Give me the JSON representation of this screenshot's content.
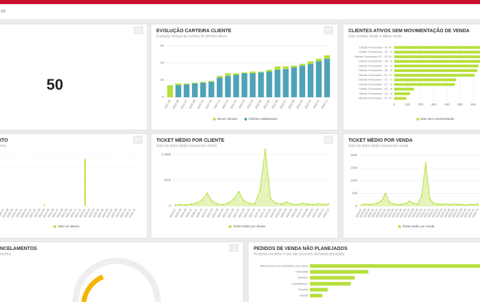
{
  "header": {
    "title_fragment": "as"
  },
  "kpi": {
    "value": 50
  },
  "chart_data": [
    {
      "type": "stacked_bar",
      "title": "EVOLUÇÃO CARTEIRA CLIENTE",
      "subtitle": "Evolução mensal da carteira de clientes ativos",
      "categories": [
        "2021-05",
        "2021-06",
        "2021-07",
        "2021-08",
        "2021-09",
        "2021-10",
        "2021-11",
        "2021-12",
        "2022-01",
        "2022-02",
        "2022-03",
        "2022-04",
        "2022-05",
        "2022-06",
        "2022-07",
        "2022-08",
        "2022-09",
        "2022-10",
        "2022-11",
        "2022-12"
      ],
      "series": [
        {
          "name": "Novos clientes",
          "color": "#b5e03a",
          "values": [
            14,
            2,
            1,
            1,
            1,
            1,
            2,
            3,
            2,
            1,
            2,
            1,
            2,
            4,
            3,
            2,
            2,
            3,
            3,
            4
          ]
        },
        {
          "name": "Clientes cadastrados",
          "color": "#4fa3b8",
          "values": [
            0,
            14,
            15,
            16,
            17,
            18,
            23,
            25,
            26,
            28,
            28,
            29,
            30,
            32,
            33,
            35,
            37,
            39,
            42,
            45
          ]
        }
      ],
      "ylim": [
        0,
        64
      ],
      "yticks": [
        0,
        20,
        40,
        60
      ],
      "grid": true
    },
    {
      "type": "hbar",
      "title": "CLIENTES ATIVOS SEM MOVIMENTAÇÃO DE VENDA",
      "subtitle": "Dias corridos desde a última venda",
      "categories": [
        "Cliente Fornecedor - ID \"A\"",
        "Cliente Fornecedor - 1P - C",
        "Cliente Fornecedor PF - 1P \"A\"",
        "Cliente Fornecedor - 1P - E",
        "Cliente Fornecedor - 1C - C",
        "Cliente Fornecedor - 3P - B",
        "Cliente Fornecedor - 3C \"A\"",
        "Cliente Fornecedor - 1C - C",
        "Cliente Fornecedor - 1C - D",
        "Cliente Fornecedor - 3C - B",
        "Cliente Fornecedor - 1C - A",
        "Cliente Fornecedor - 1C \"A\""
      ],
      "series": [
        {
          "name": "Dias sem movimentação",
          "color": "#b5e03a",
          "values": [
            680,
            670,
            660,
            650,
            640,
            630,
            610,
            470,
            460,
            150,
            120,
            90
          ]
        }
      ],
      "xlim": [
        0,
        650
      ],
      "xticks": [
        0,
        100,
        200,
        300,
        400,
        500,
        600
      ],
      "grid": true
    },
    {
      "type": "bar",
      "title": "ITO",
      "subtitle": "erto",
      "categories": [
        "2020-07",
        "2020-08",
        "2020-09",
        "2020-10",
        "2020-11",
        "2020-12",
        "2021-01",
        "2021-02",
        "2021-03",
        "2021-04",
        "2021-05",
        "2021-06",
        "2021-07",
        "2021-08",
        "2021-09",
        "2021-10",
        "2021-11",
        "2021-12",
        "2022-01",
        "2022-02",
        "2022-03",
        "2022-04",
        "2022-05",
        "2022-06",
        "2022-07",
        "2022-08",
        "2022-09",
        "2022-10",
        "2022-11",
        "2022-12"
      ],
      "series": [
        {
          "name": "Valor em aberto",
          "color": "#b5e03a",
          "values": [
            0,
            0,
            0,
            0,
            0,
            0,
            0,
            0,
            0,
            3,
            0,
            0,
            0,
            0,
            0,
            0,
            0,
            0,
            92,
            0,
            0,
            0,
            0,
            0,
            0,
            0,
            0,
            0,
            0,
            0
          ]
        }
      ],
      "ylim": [
        0,
        100
      ]
    },
    {
      "type": "area",
      "title": "TICKET MÉDIO POR CLIENTE",
      "subtitle": "Valor do ticket médio mensal por cliente",
      "categories": [
        "2020-07",
        "2020-08",
        "2020-09",
        "2020-10",
        "2020-11",
        "2020-12",
        "2021-01",
        "2021-02",
        "2021-03",
        "2021-04",
        "2021-05",
        "2021-06",
        "2021-07",
        "2021-08",
        "2021-09",
        "2021-10",
        "2021-11",
        "2021-12",
        "2022-01",
        "2022-02",
        "2022-03",
        "2022-04",
        "2022-05",
        "2022-06",
        "2022-07",
        "2022-08",
        "2022-09",
        "2022-10",
        "2022-11",
        "2022-12"
      ],
      "series": [
        {
          "name": "Ticket médio por cliente",
          "color": "#b5e03a",
          "values": [
            20000,
            30000,
            25000,
            40000,
            60000,
            120000,
            250000,
            90000,
            40000,
            30000,
            60000,
            130000,
            280000,
            100000,
            50000,
            40000,
            300000,
            1100000,
            150000,
            60000,
            40000,
            80000,
            40000,
            30000,
            50000,
            40000,
            30000,
            45000,
            35000,
            40000
          ]
        }
      ],
      "ylim": [
        0,
        1050000
      ],
      "yticks": [
        0,
        {
          "value": 500000,
          "label": "500k"
        },
        {
          "value": 1000000,
          "label": "1.000k"
        }
      ],
      "grid": true
    },
    {
      "type": "area",
      "title": "TICKET MÉDIO POR VENDA",
      "subtitle": "Valor do ticket médio mensal por venda",
      "categories": [
        "2020-07",
        "2020-08",
        "2020-09",
        "2020-10",
        "2020-11",
        "2020-12",
        "2021-01",
        "2021-02",
        "2021-03",
        "2021-04",
        "2021-05",
        "2021-06",
        "2021-07",
        "2021-08",
        "2021-09",
        "2021-10",
        "2021-11",
        "2021-12",
        "2022-01",
        "2022-02",
        "2022-03",
        "2022-04",
        "2022-05",
        "2022-06",
        "2022-07",
        "2022-08",
        "2022-09",
        "2022-10",
        "2022-11",
        "2022-12"
      ],
      "series": [
        {
          "name": "Ticket médio por venda",
          "color": "#b5e03a",
          "values": [
            5000,
            8000,
            6000,
            7000,
            12000,
            20000,
            50000,
            15000,
            8000,
            6000,
            7000,
            9000,
            20000,
            10000,
            8000,
            40000,
            170000,
            30000,
            10000,
            8000,
            7000,
            9000,
            6000,
            8000,
            7000,
            6000,
            5000,
            7000,
            6000,
            8000
          ]
        }
      ],
      "ylim": [
        0,
        210000
      ],
      "yticks": [
        0,
        {
          "value": 50000,
          "label": "50k"
        },
        {
          "value": 100000,
          "label": "100k"
        },
        {
          "value": 150000,
          "label": "150k"
        },
        {
          "value": 200000,
          "label": "200k"
        }
      ],
      "grid": true
    },
    {
      "type": "gauge",
      "title": "NCELAMENTOS",
      "subtitle": "mentos"
    },
    {
      "type": "hbar",
      "title": "PEDIDOS DE VENDA NÃO PLANEJADOS",
      "subtitle": "Produtos vendidos e que não possuem demanda planejada",
      "categories": [
        "Alfarroba em pó destostada com casca",
        "Chocolate",
        "Gelatina",
        "Liquidificador",
        "Sorvete",
        "Queijo"
      ],
      "values": [
        250,
        86,
        66,
        60,
        26,
        18
      ],
      "color": "#b5e03a"
    }
  ]
}
